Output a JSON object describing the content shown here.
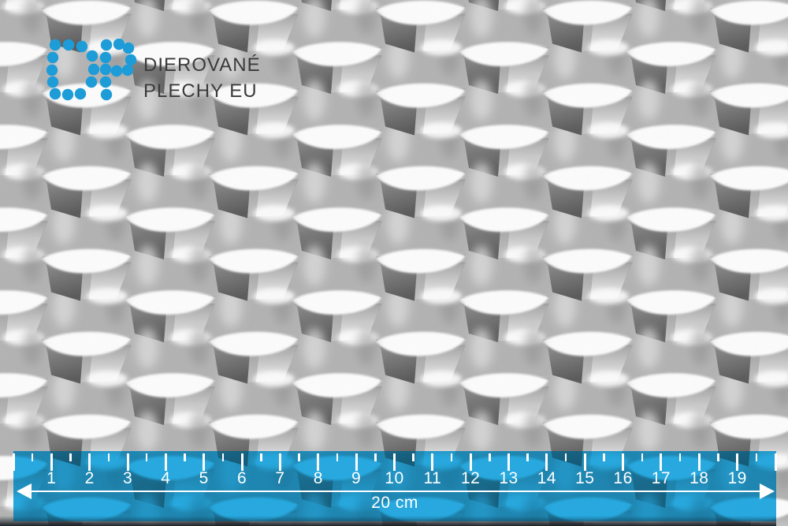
{
  "brand": {
    "monogram": "DP",
    "monogram_color": "#1e9cd7",
    "line1": "DIEROVANÉ",
    "line2": "PLECHY EU",
    "text_color": "#3a3a3a"
  },
  "photo": {
    "alt": "grey perforated metal sheet, staggered rows of pressed oval slots",
    "base_color": "#b1b1b1"
  },
  "ruler": {
    "unit": "cm",
    "tick_min": 0,
    "tick_max": 20,
    "minor_step": 0.5,
    "major_step": 1,
    "labels": [
      "1",
      "2",
      "3",
      "4",
      "5",
      "6",
      "7",
      "8",
      "9",
      "10",
      "11",
      "12",
      "13",
      "14",
      "15",
      "16",
      "17",
      "18",
      "19"
    ],
    "span_label": "20 cm",
    "band_color": "#29abe2",
    "mark_color": "#ffffff"
  }
}
